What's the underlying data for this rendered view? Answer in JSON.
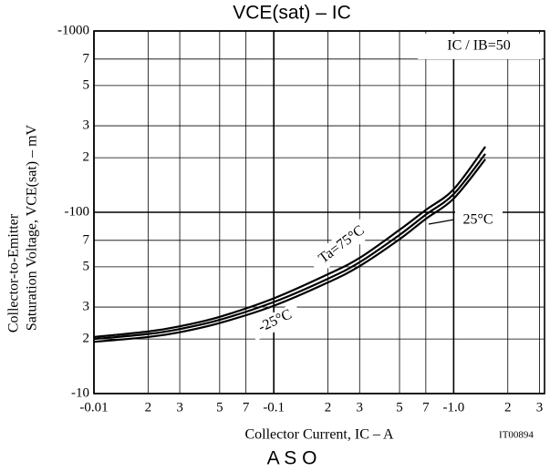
{
  "chart_data": {
    "type": "line",
    "title": "VCE(sat) – IC",
    "x_label": "Collector Current, IC – A",
    "y_label": [
      "Collector-to-Emitter",
      "Saturation Voltage, VCE(sat) – mV"
    ],
    "annotations": [
      "IC / IB=50",
      "Ta=75°C",
      "25°C",
      "-25°C",
      "IT00894",
      "A S O"
    ],
    "log_x": true,
    "log_y": true,
    "grid": true,
    "x": [
      -0.01,
      -0.02,
      -0.03,
      -0.05,
      -0.1,
      -0.2,
      -0.3,
      -0.5,
      -0.7,
      -1.0,
      -1.5
    ],
    "series": [
      {
        "name": "Ta=75°C",
        "color": "#000000",
        "values": [
          -20.5,
          -22,
          -23.5,
          -26.5,
          -33.5,
          -45.5,
          -56,
          -80,
          -103,
          -134,
          -230
        ]
      },
      {
        "name": "25°C",
        "color": "#000000",
        "values": [
          -20,
          -21.3,
          -22.7,
          -25.5,
          -32,
          -43,
          -53,
          -75,
          -97,
          -126,
          -210
        ]
      },
      {
        "name": "-25°C",
        "color": "#000000",
        "values": [
          -19.3,
          -20.5,
          -21.8,
          -24.5,
          -30.5,
          -41,
          -50.5,
          -71,
          -92,
          -119,
          -196
        ]
      }
    ],
    "xlim": [
      -0.01,
      -3.2
    ],
    "xticks": [
      -0.01,
      {
        "value": -0.02,
        "label": "2"
      },
      {
        "value": -0.03,
        "label": "3"
      },
      {
        "value": -0.05,
        "label": "5"
      },
      {
        "value": -0.07,
        "label": "7"
      },
      -0.1,
      {
        "value": -0.2,
        "label": "2"
      },
      {
        "value": -0.3,
        "label": "3"
      },
      {
        "value": -0.5,
        "label": "5"
      },
      {
        "value": -0.7,
        "label": "7"
      },
      {
        "value": -1,
        "label": "-1.0"
      },
      {
        "value": -2,
        "label": "2"
      },
      {
        "value": -3,
        "label": "3"
      }
    ],
    "ylim": [
      -10,
      -1000
    ],
    "yticks": [
      -10,
      {
        "value": -20,
        "label": "2"
      },
      {
        "value": -30,
        "label": "3"
      },
      {
        "value": -50,
        "label": "5"
      },
      {
        "value": -70,
        "label": "7"
      },
      -100,
      {
        "value": -200,
        "label": "2"
      },
      {
        "value": -300,
        "label": "3"
      },
      {
        "value": -500,
        "label": "5"
      },
      {
        "value": -700,
        "label": "7"
      },
      -1000
    ]
  }
}
